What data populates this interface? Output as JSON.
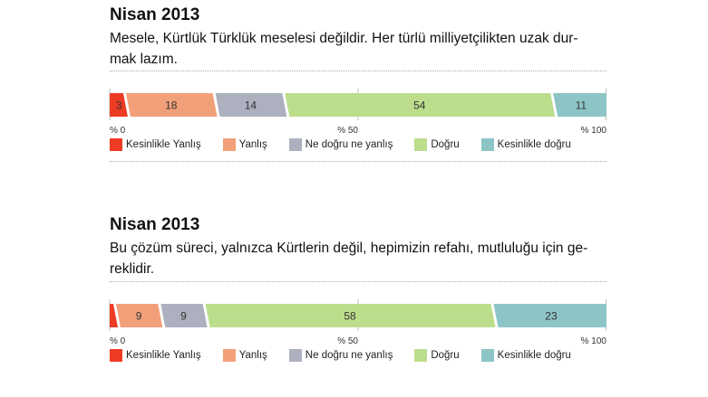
{
  "colors": [
    "#ee3b24",
    "#f2a079",
    "#acb0bf",
    "#bcdd8c",
    "#8dc5c6"
  ],
  "legend": [
    "Kesinlikle Yanlış",
    "Yanlış",
    "Ne doğru ne yanlış",
    "Doğru",
    "Kesinlikle doğru"
  ],
  "chart_data": [
    {
      "type": "bar",
      "stacked": true,
      "orientation": "horizontal",
      "title": "Nisan 2013",
      "subtitle": "Mesele, Kürtlük Türklük meselesi değildir. Her türlü milliyetçilikten uzak dur-mak lazım.",
      "subtitle_lines": [
        "Mesele, Kürtlük Türklük meselesi değildir. Her türlü milliyetçilikten uzak dur-",
        "mak lazım."
      ],
      "series": [
        "Kesinlikle Yanlış",
        "Yanlış",
        "Ne doğru ne yanlış",
        "Doğru",
        "Kesinlikle doğru"
      ],
      "values": [
        3,
        18,
        14,
        54,
        11
      ],
      "labels": [
        "3",
        "18",
        "14",
        "54",
        "11"
      ],
      "xlim": [
        0,
        100
      ],
      "ticks": [
        "% 0",
        "% 50",
        "% 100"
      ]
    },
    {
      "type": "bar",
      "stacked": true,
      "orientation": "horizontal",
      "title": "Nisan 2013",
      "subtitle": "Bu çözüm süreci, yalnızca Kürtlerin değil, hepimizin refahı, mutluluğu için ge-reklidir.",
      "subtitle_lines": [
        "Bu çözüm süreci, yalnızca Kürtlerin değil, hepimizin refahı, mutluluğu için ge-",
        "reklidir."
      ],
      "series": [
        "Kesinlikle Yanlış",
        "Yanlış",
        "Ne doğru ne yanlış",
        "Doğru",
        "Kesinlikle doğru"
      ],
      "values": [
        1,
        9,
        9,
        58,
        23
      ],
      "labels": [
        "",
        "9",
        "9",
        "58",
        "23"
      ],
      "xlim": [
        0,
        100
      ],
      "ticks": [
        "% 0",
        "% 50",
        "% 100"
      ]
    }
  ]
}
